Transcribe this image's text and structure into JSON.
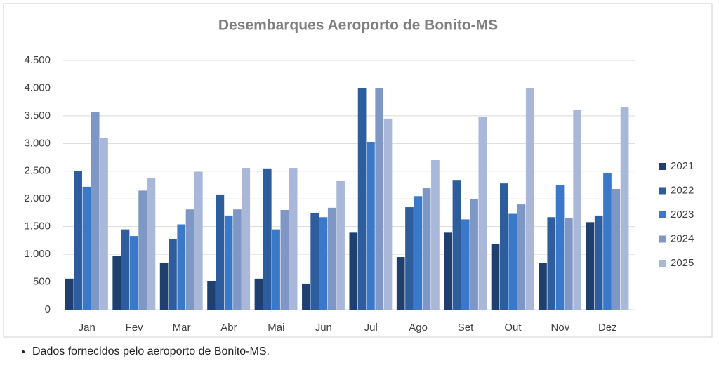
{
  "chart_data": {
    "type": "bar",
    "title": "Desembarques Aeroporto de Bonito-MS",
    "categories": [
      "Jan",
      "Fev",
      "Mar",
      "Abr",
      "Mai",
      "Jun",
      "Jul",
      "Ago",
      "Set",
      "Out",
      "Nov",
      "Dez"
    ],
    "series": [
      {
        "name": "2021",
        "color": "#1f3f6e",
        "values": [
          560,
          970,
          850,
          520,
          560,
          470,
          1390,
          950,
          1390,
          1180,
          840,
          1580
        ]
      },
      {
        "name": "2022",
        "color": "#2e5d9e",
        "values": [
          2500,
          1450,
          1280,
          2080,
          2550,
          1750,
          4000,
          1850,
          2330,
          2280,
          1670,
          1700
        ]
      },
      {
        "name": "2023",
        "color": "#3a78c9",
        "values": [
          2220,
          1330,
          1540,
          1700,
          1450,
          1670,
          3030,
          2050,
          1630,
          1730,
          2250,
          2470
        ]
      },
      {
        "name": "2024",
        "color": "#7f97c4",
        "values": [
          3570,
          2150,
          1810,
          1810,
          1800,
          1840,
          4000,
          2200,
          1990,
          1900,
          1660,
          2180
        ]
      },
      {
        "name": "2025",
        "color": "#a9b8d9",
        "values": [
          3100,
          2370,
          2490,
          2560,
          2560,
          2320,
          3450,
          2700,
          3480,
          4000,
          3610,
          3650
        ]
      }
    ],
    "ylim": [
      0,
      4500
    ],
    "yticks": [
      0,
      500,
      {
        "value": 1000,
        "label": "1.000"
      },
      {
        "value": 1500,
        "label": "1.500"
      },
      {
        "value": 2000,
        "label": "2.000"
      },
      {
        "value": 2500,
        "label": "2.500"
      },
      {
        "value": 3000,
        "label": "3.000"
      },
      {
        "value": 3500,
        "label": "3.500"
      },
      {
        "value": 4000,
        "label": "4.000"
      },
      {
        "value": 4500,
        "label": "4.500"
      }
    ],
    "grid": true,
    "legend": "right"
  },
  "footnote": "Dados fornecidos pelo aeroporto de Bonito-MS."
}
